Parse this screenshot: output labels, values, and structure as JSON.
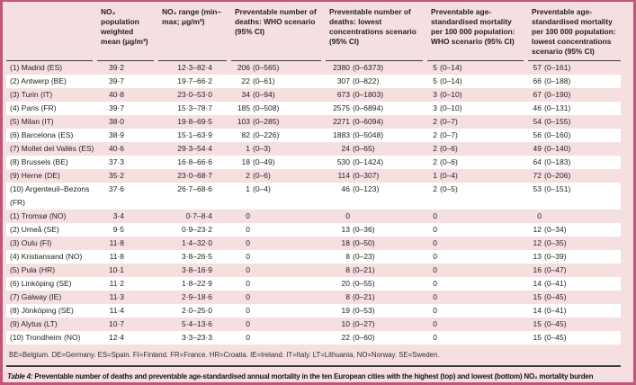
{
  "colors": {
    "frame": "#c2557a",
    "background": "#f6dfe1",
    "stripe": "#ffffff",
    "rule": "#3a3a3a",
    "text": "#1f1f1f"
  },
  "table": {
    "columns": [
      "",
      "NO₂ population weighted mean (μg/m³)",
      "NO₂ range (min–max; μg/m³)",
      "Preventable number of deaths: WHO scenario (95% CI)",
      "Preventable number of deaths: lowest concentrations scenario (95% CI)",
      "Preventable age-standardised mortality per 100 000 population: WHO scenario (95% CI)",
      "Preventable age-standardised mortality per 100 000 population: lowest concentrations scenario (95% CI)"
    ],
    "rows": [
      {
        "city": "(1) Madrid (ES)",
        "mean": "39·2",
        "range": "12·3–82·4",
        "deaths_who": "206 (0–565)",
        "deaths_low": "2380 (0–6373)",
        "mort_who": "5 (0–14)",
        "mort_low": "57 (0–161)"
      },
      {
        "city": "(2) Antwerp (BE)",
        "mean": "39·7",
        "range": "19·7–66·2",
        "deaths_who": "22 (0–61)",
        "deaths_low": "307 (0–822)",
        "mort_who": "5 (0–14)",
        "mort_low": "66 (0–188)"
      },
      {
        "city": "(3) Turin (IT)",
        "mean": "40·8",
        "range": "23·0–53·0",
        "deaths_who": "34 (0–94)",
        "deaths_low": "673 (0–1803)",
        "mort_who": "3 (0–10)",
        "mort_low": "67 (0–190)"
      },
      {
        "city": "(4) Paris (FR)",
        "mean": "39·7",
        "range": "15·3–78·7",
        "deaths_who": "185 (0–508)",
        "deaths_low": "2575 (0–6894)",
        "mort_who": "3 (0–10)",
        "mort_low": "46 (0–131)"
      },
      {
        "city": "(5) Milan (IT)",
        "mean": "38·0",
        "range": "19·8–69·5",
        "deaths_who": "103 (0–285)",
        "deaths_low": "2271 (0–6094)",
        "mort_who": "2 (0–7)",
        "mort_low": "54 (0–155)"
      },
      {
        "city": "(6) Barcelona (ES)",
        "mean": "38·9",
        "range": "15·1–63·9",
        "deaths_who": "82 (0–226)",
        "deaths_low": "1883 (0–5048)",
        "mort_who": "2 (0–7)",
        "mort_low": "56 (0–160)"
      },
      {
        "city": "(7) Mollet del Vallès (ES)",
        "mean": "40·6",
        "range": "29·3–54·4",
        "deaths_who": "1 (0–3)",
        "deaths_low": "24 (0–65)",
        "mort_who": "2 (0–6)",
        "mort_low": "49 (0–140)"
      },
      {
        "city": "(8) Brussels (BE)",
        "mean": "37·3",
        "range": "16·8–66·6",
        "deaths_who": "18 (0–49)",
        "deaths_low": "530 (0–1424)",
        "mort_who": "2 (0–6)",
        "mort_low": "64 (0–183)"
      },
      {
        "city": "(9) Herne (DE)",
        "mean": "35·2",
        "range": "23·0–68·7",
        "deaths_who": "2 (0–6)",
        "deaths_low": "114 (0–307)",
        "mort_who": "1 (0–4)",
        "mort_low": "72 (0–206)"
      },
      {
        "city": "(10) Argenteuil–Bezons\n(FR)",
        "mean": "37·6",
        "range": "26·7–68·6",
        "deaths_who": "1 (0–4)",
        "deaths_low": "46 (0–123)",
        "mort_who": "2 (0–5)",
        "mort_low": "53 (0–151)"
      },
      {
        "city": "(1) Tromsø (NO)",
        "mean": "3·4",
        "range": "0·7–8·4",
        "deaths_who": "0",
        "deaths_low": "0",
        "mort_who": "0",
        "mort_low": "0"
      },
      {
        "city": "(2) Umeå (SE)",
        "mean": "9·5",
        "range": "0·9–23·2",
        "deaths_who": "0",
        "deaths_low": "13 (0–36)",
        "mort_who": "0",
        "mort_low": "12 (0–34)"
      },
      {
        "city": "(3) Oulu (FI)",
        "mean": "11·8",
        "range": "1·4–32·0",
        "deaths_who": "0",
        "deaths_low": "18 (0–50)",
        "mort_who": "0",
        "mort_low": "12 (0–35)"
      },
      {
        "city": "(4) Kristiansand (NO)",
        "mean": "11·8",
        "range": "3·8–26·5",
        "deaths_who": "0",
        "deaths_low": "8 (0–23)",
        "mort_who": "0",
        "mort_low": "13 (0–39)"
      },
      {
        "city": "(5) Pula (HR)",
        "mean": "10·1",
        "range": "3·8–16·9",
        "deaths_who": "0",
        "deaths_low": "8 (0–21)",
        "mort_who": "0",
        "mort_low": "16 (0–47)"
      },
      {
        "city": "(6) Linköping (SE)",
        "mean": "11·2",
        "range": "1·8–22·9",
        "deaths_who": "0",
        "deaths_low": "20 (0–55)",
        "mort_who": "0",
        "mort_low": "14 (0–41)"
      },
      {
        "city": "(7) Galway (IE)",
        "mean": "11·3",
        "range": "2·9–18·6",
        "deaths_who": "0",
        "deaths_low": "8 (0–21)",
        "mort_who": "0",
        "mort_low": "15 (0–45)"
      },
      {
        "city": "(8) Jönköping (SE)",
        "mean": "11·4",
        "range": "2·0–25·0",
        "deaths_who": "0",
        "deaths_low": "19 (0–53)",
        "mort_who": "0",
        "mort_low": "14 (0–41)"
      },
      {
        "city": "(9) Alytus (LT)",
        "mean": "10·7",
        "range": "5·4–13·6",
        "deaths_who": "0",
        "deaths_low": "10 (0–27)",
        "mort_who": "0",
        "mort_low": "15 (0–45)"
      },
      {
        "city": "(10) Trondheim (NO)",
        "mean": "12·4",
        "range": "3·3–23·3",
        "deaths_who": "0",
        "deaths_low": "22 (0–60)",
        "mort_who": "0",
        "mort_low": "15 (0–45)"
      }
    ],
    "legend": "BE=Belgium. DE=Germany. ES=Spain. FI=Finland. FR=France. HR=Croatia. IE=Ireland. IT=Italy. LT=Lithuania. NO=Norway. SE=Sweden.",
    "caption": {
      "label": "Table 4:",
      "text": " Preventable number of deaths and preventable age-standardised annual mortality in the ten European cities with the highest (top) and lowest (bottom) NO₂ mortality burden"
    }
  }
}
